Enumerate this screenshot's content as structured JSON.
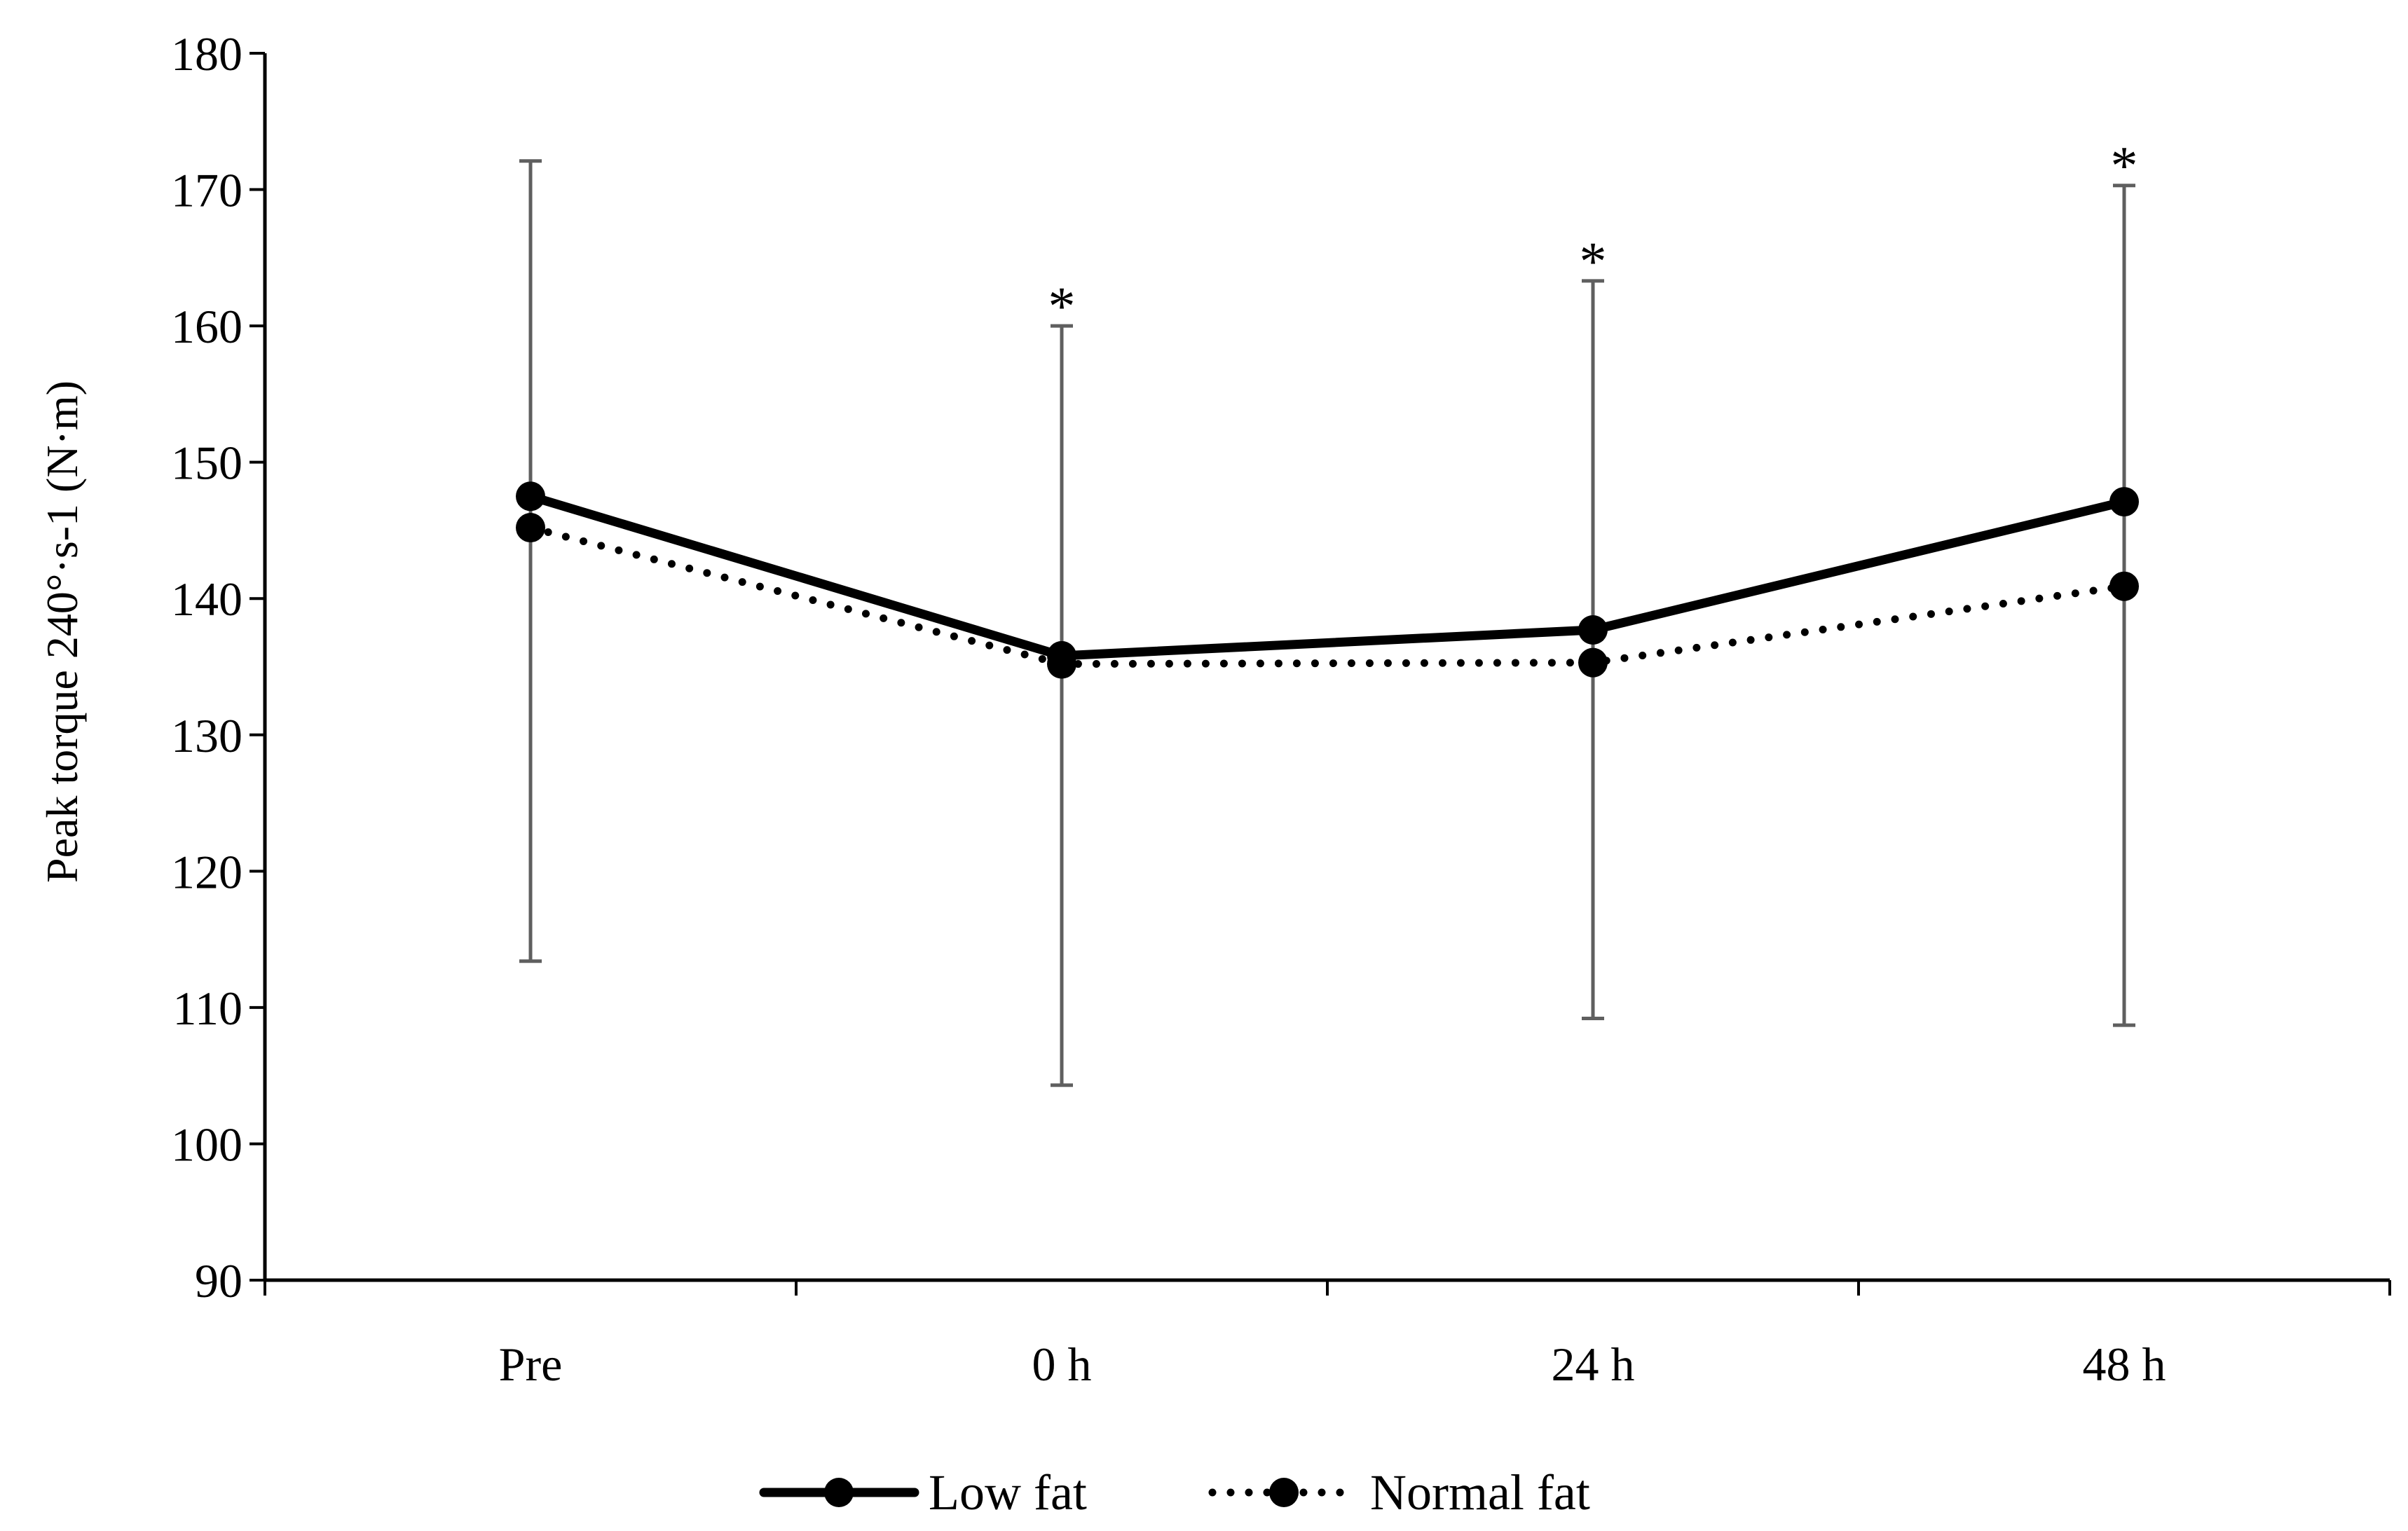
{
  "chart_data": {
    "type": "line",
    "title": "",
    "xlabel": "",
    "ylabel": "Peak torque 240°·s-1 (N·m)",
    "ylim": [
      90,
      180
    ],
    "yticks": [
      90,
      100,
      110,
      120,
      130,
      140,
      150,
      160,
      170,
      180
    ],
    "categories": [
      "Pre",
      "0 h",
      "24 h",
      "48 h"
    ],
    "series": [
      {
        "name": "Low fat",
        "style": "solid",
        "values": [
          147.5,
          135.8,
          137.7,
          147.1
        ]
      },
      {
        "name": "Normal fat",
        "style": "dotted",
        "values": [
          145.2,
          135.2,
          135.3,
          140.9
        ]
      }
    ],
    "error_bars": {
      "lower": [
        113.4,
        104.3,
        109.2,
        108.7
      ],
      "upper": [
        172.1,
        160.0,
        163.3,
        170.3
      ]
    },
    "significance_markers": [
      "",
      "*",
      "*",
      "*"
    ],
    "legend_position": "bottom-center",
    "grid": false
  }
}
